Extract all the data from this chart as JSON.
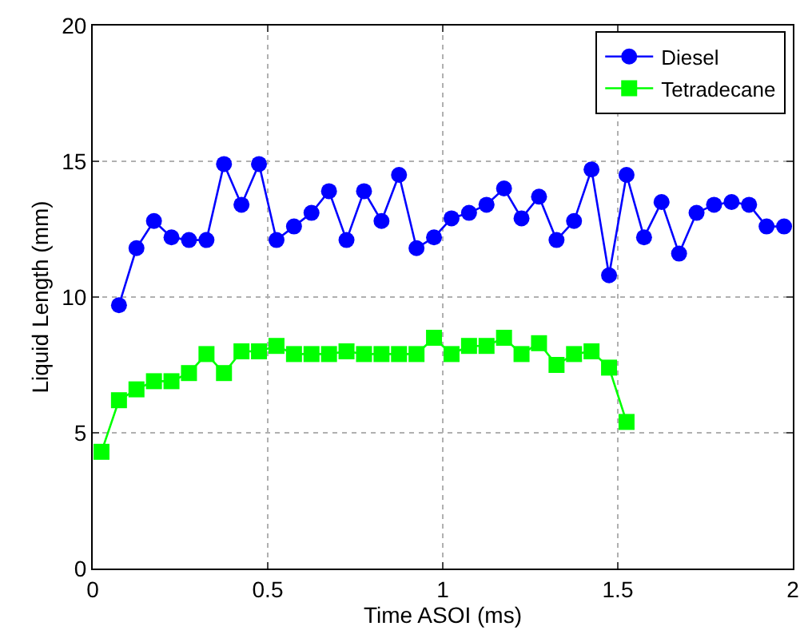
{
  "chart_data": {
    "type": "line",
    "xlabel": "Time ASOI (ms)",
    "ylabel": "Liquid Length (mm)",
    "xlim": [
      0,
      2
    ],
    "xticks": [
      0,
      0.5,
      1,
      1.5,
      2
    ],
    "ylim": [
      0,
      20
    ],
    "yticks": [
      0,
      5,
      10,
      15,
      20
    ],
    "grid": true,
    "legend": "top right",
    "line_style": "solid",
    "series": [
      {
        "name": "Diesel",
        "color": "#0000ff",
        "marker": "circle",
        "x": [
          0.075,
          0.125,
          0.175,
          0.225,
          0.275,
          0.325,
          0.375,
          0.425,
          0.475,
          0.525,
          0.575,
          0.625,
          0.675,
          0.725,
          0.775,
          0.825,
          0.875,
          0.925,
          0.975,
          1.025,
          1.075,
          1.125,
          1.175,
          1.225,
          1.275,
          1.325,
          1.375,
          1.425,
          1.475,
          1.525,
          1.575,
          1.625,
          1.675,
          1.725,
          1.775,
          1.825,
          1.875,
          1.925,
          1.975
        ],
        "values": [
          9.7,
          11.8,
          12.8,
          12.2,
          12.1,
          12.1,
          14.9,
          13.4,
          14.9,
          12.1,
          12.6,
          13.1,
          13.9,
          12.1,
          13.9,
          12.8,
          14.5,
          11.8,
          12.2,
          12.9,
          13.1,
          13.4,
          14.0,
          12.9,
          13.7,
          12.1,
          12.8,
          14.7,
          10.8,
          14.5,
          12.2,
          13.5,
          11.6,
          13.1,
          13.4,
          13.5,
          13.4,
          12.6,
          12.6
        ]
      },
      {
        "name": "Tetradecane",
        "color": "#00ff00",
        "marker": "square",
        "x": [
          0.025,
          0.075,
          0.125,
          0.175,
          0.225,
          0.275,
          0.325,
          0.375,
          0.425,
          0.475,
          0.525,
          0.575,
          0.625,
          0.675,
          0.725,
          0.775,
          0.825,
          0.875,
          0.925,
          0.975,
          1.025,
          1.075,
          1.125,
          1.175,
          1.225,
          1.275,
          1.325,
          1.375,
          1.425,
          1.475,
          1.525
        ],
        "values": [
          4.3,
          6.2,
          6.6,
          6.9,
          6.9,
          7.2,
          7.9,
          7.2,
          8.0,
          8.0,
          8.2,
          7.9,
          7.9,
          7.9,
          8.0,
          7.9,
          7.9,
          7.9,
          7.9,
          8.5,
          7.9,
          8.2,
          8.2,
          8.5,
          7.9,
          8.3,
          7.5,
          7.9,
          8.0,
          7.4,
          5.4
        ]
      }
    ]
  }
}
